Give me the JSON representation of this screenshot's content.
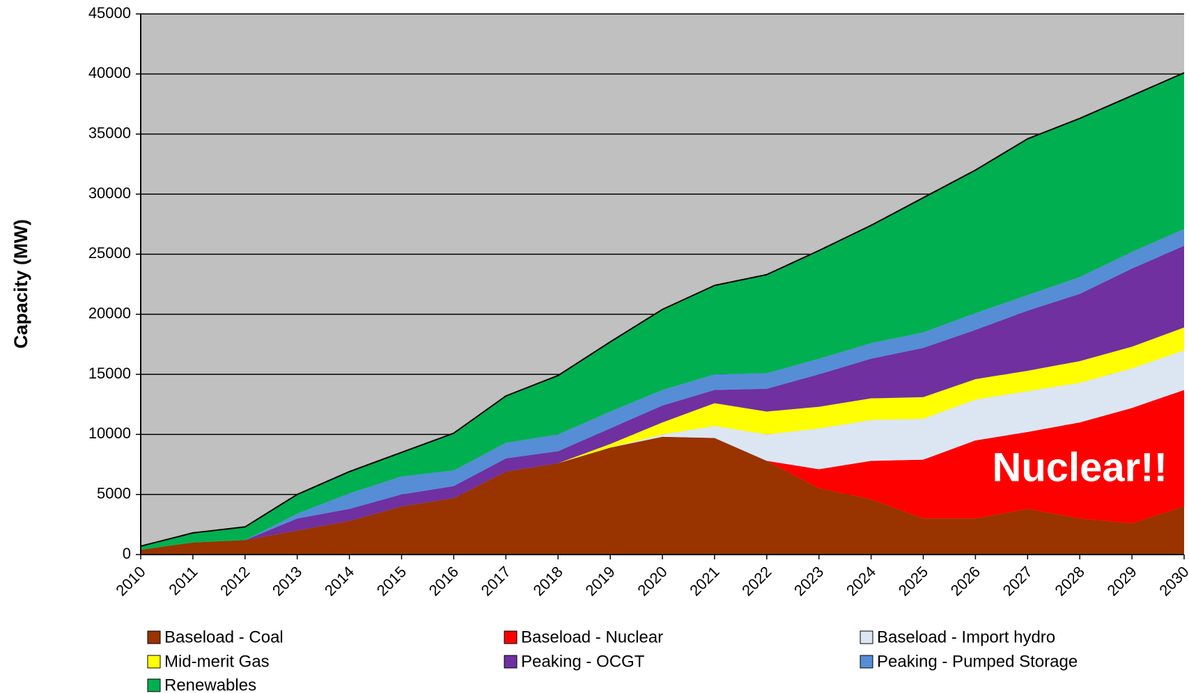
{
  "chart_data": {
    "type": "stacked_area",
    "y_label": "Capacity (MW)",
    "annotation": "Nuclear!!",
    "categories": [
      "2010",
      "2011",
      "2012",
      "2013",
      "2014",
      "2015",
      "2016",
      "2017",
      "2018",
      "2019",
      "2020",
      "2021",
      "2022",
      "2023",
      "2024",
      "2025",
      "2026",
      "2027",
      "2028",
      "2029",
      "2030"
    ],
    "series": [
      {
        "name": "Baseload - Coal",
        "color": "#993300",
        "values": [
          400,
          1000,
          1200,
          2000,
          2800,
          4000,
          4700,
          6900,
          7600,
          8900,
          9800,
          9700,
          7800,
          5500,
          4600,
          3000,
          3000,
          3800,
          3000,
          2600,
          4000
        ]
      },
      {
        "name": "Baseload - Nuclear",
        "color": "#ff0000",
        "values": [
          0,
          0,
          0,
          0,
          0,
          0,
          0,
          0,
          0,
          0,
          0,
          0,
          0,
          1600,
          3200,
          4900,
          6500,
          6400,
          8000,
          9600,
          9700
        ]
      },
      {
        "name": "Baseload - Import hydro",
        "color": "#dce6f2",
        "values": [
          0,
          0,
          0,
          0,
          0,
          0,
          0,
          0,
          0,
          0,
          200,
          1000,
          2200,
          3400,
          3400,
          3400,
          3400,
          3400,
          3300,
          3300,
          3300
        ]
      },
      {
        "name": "Mid-merit Gas",
        "color": "#ffff00",
        "values": [
          0,
          0,
          0,
          0,
          0,
          0,
          0,
          0,
          0,
          300,
          1000,
          1900,
          1900,
          1800,
          1800,
          1800,
          1700,
          1700,
          1800,
          1800,
          1900
        ]
      },
      {
        "name": "Peaking - OCGT",
        "color": "#7030a0",
        "values": [
          0,
          0,
          0,
          1000,
          1000,
          1000,
          1000,
          1100,
          1000,
          1300,
          1400,
          1100,
          1900,
          2700,
          3300,
          4100,
          4100,
          5000,
          5600,
          6500,
          6800
        ]
      },
      {
        "name": "Peaking - Pumped Storage",
        "color": "#558ed5",
        "values": [
          0,
          0,
          0,
          400,
          1300,
          1500,
          1300,
          1300,
          1400,
          1400,
          1300,
          1300,
          1300,
          1300,
          1300,
          1300,
          1400,
          1300,
          1400,
          1400,
          1400
        ]
      },
      {
        "name": "Renewables",
        "color": "#00b050",
        "values": [
          300,
          800,
          1100,
          1600,
          1800,
          2000,
          3100,
          3900,
          4900,
          5800,
          6700,
          7400,
          8200,
          9000,
          9800,
          11200,
          11900,
          13000,
          13200,
          13000,
          13000
        ]
      }
    ],
    "ylim": [
      0,
      45000
    ],
    "yticks": [
      0,
      5000,
      10000,
      15000,
      20000,
      25000,
      30000,
      35000,
      40000,
      45000
    ],
    "grid": true,
    "background": "#c0c0c0"
  }
}
